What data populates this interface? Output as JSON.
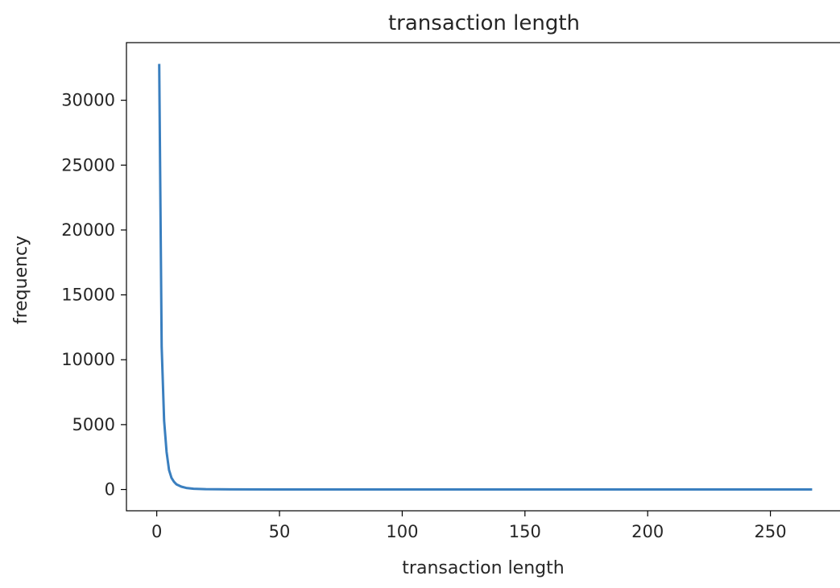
{
  "chart_data": {
    "type": "line",
    "title": "transaction length",
    "xlabel": "transaction length",
    "ylabel": "frequency",
    "xlim": [
      -12.35,
      278.35
    ],
    "ylim": [
      -1640,
      34440
    ],
    "xticks": [
      0,
      50,
      100,
      150,
      200,
      250
    ],
    "yticks": [
      0,
      5000,
      10000,
      15000,
      20000,
      25000,
      30000
    ],
    "xtick_labels": [
      "0",
      "50",
      "100",
      "150",
      "200",
      "250"
    ],
    "ytick_labels": [
      "0",
      "5000",
      "10000",
      "15000",
      "20000",
      "25000",
      "30000"
    ],
    "grid": false,
    "line_color": "#3a7fbf",
    "series": [
      {
        "x": [
          1,
          2,
          3,
          4,
          5,
          6,
          7,
          8,
          10,
          12,
          15,
          20,
          30,
          50,
          100,
          150,
          200,
          267
        ],
        "values": [
          32800,
          11000,
          5300,
          2900,
          1500,
          900,
          600,
          400,
          220,
          120,
          60,
          25,
          8,
          3,
          1,
          1,
          1,
          1
        ]
      }
    ]
  }
}
